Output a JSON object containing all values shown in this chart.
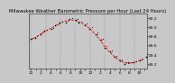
{
  "title": "Milwaukee Weather Barometric Pressure per Hour (Last 24 Hours)",
  "hours": [
    0,
    1,
    2,
    3,
    4,
    5,
    6,
    7,
    8,
    9,
    10,
    11,
    12,
    13,
    14,
    15,
    16,
    17,
    18,
    19,
    20,
    21,
    22,
    23
  ],
  "pressure": [
    29.72,
    29.78,
    29.85,
    29.91,
    29.97,
    30.03,
    30.09,
    30.13,
    30.16,
    30.14,
    30.1,
    30.05,
    29.96,
    29.85,
    29.72,
    29.57,
    29.45,
    29.35,
    29.27,
    29.22,
    29.2,
    29.23,
    29.27,
    29.31
  ],
  "ylim": [
    29.1,
    30.3
  ],
  "ytick_vals": [
    29.2,
    29.4,
    29.6,
    29.8,
    30.0,
    30.2
  ],
  "ytick_labels": [
    "29.2",
    "29.4",
    "29.6",
    "29.8",
    "30.0",
    "30.2"
  ],
  "grid_x_positions": [
    0,
    3,
    6,
    9,
    12,
    15,
    18,
    21
  ],
  "line_color": "#ff0000",
  "marker_color": "#111111",
  "grid_color": "#888888",
  "bg_color": "#c8c8c8",
  "plot_bg_color": "#c8c8c8",
  "title_fontsize": 3.8,
  "tick_fontsize": 3.2,
  "lw": 0.7
}
